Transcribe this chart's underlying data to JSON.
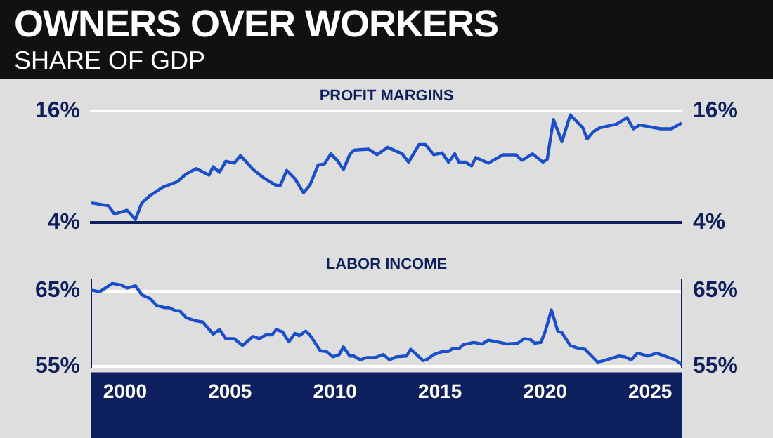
{
  "chart_data": [
    {
      "type": "other",
      "title": "OWNERS OVER WORKERS",
      "subtitle": "SHARE OF GDP"
    },
    {
      "type": "line",
      "title": "PROFIT MARGINS",
      "xlim": [
        1998.4,
        2026.5
      ],
      "xticks": [
        2000,
        2005,
        2010,
        2015,
        2020,
        2025
      ],
      "ylim": [
        4,
        16
      ],
      "yticks": [
        {
          "value": 4,
          "label": "4%"
        },
        {
          "value": 16,
          "label": "16%"
        }
      ],
      "y2lim": [
        4,
        16
      ],
      "y2ticks": [
        {
          "value": 4,
          "label": "4%"
        },
        {
          "value": 16,
          "label": "16%"
        }
      ],
      "tick_labels": "y",
      "legend": false,
      "series": [
        {
          "color": "#1a4fc9",
          "x": [
            1998.4,
            1999.2,
            1999.5,
            2000.1,
            2000.5,
            2000.8,
            2001.2,
            2001.8,
            2002.5,
            2002.9,
            2003.4,
            2004.0,
            2004.2,
            2004.5,
            2004.8,
            2005.2,
            2005.5,
            2006.1,
            2006.6,
            2007.2,
            2007.4,
            2007.7,
            2008.1,
            2008.5,
            2008.8,
            2009.2,
            2009.5,
            2009.8,
            2010.1,
            2010.4,
            2010.7,
            2010.9,
            2011.6,
            2012.0,
            2012.5,
            2013.2,
            2013.5,
            2014.0,
            2014.3,
            2014.7,
            2015.1,
            2015.4,
            2015.7,
            2015.9,
            2016.2,
            2016.5,
            2016.7,
            2017.3,
            2018.0,
            2018.6,
            2018.9,
            2019.4,
            2019.9,
            2020.1,
            2020.4,
            2020.8,
            2021.2,
            2021.8,
            2022.0,
            2022.3,
            2022.6,
            2023.4,
            2023.9,
            2024.2,
            2024.5,
            2025.5,
            2026.0,
            2026.5
          ],
          "values": [
            6.1,
            5.8,
            4.9,
            5.3,
            4.3,
            6.1,
            6.9,
            7.8,
            8.4,
            9.2,
            9.8,
            9.1,
            10.0,
            9.4,
            10.6,
            10.4,
            11.2,
            9.7,
            8.8,
            8.0,
            8.0,
            9.6,
            8.7,
            7.2,
            8.0,
            10.2,
            10.3,
            11.4,
            10.7,
            9.7,
            11.3,
            11.8,
            11.9,
            11.3,
            12.1,
            11.4,
            10.5,
            12.4,
            12.4,
            11.3,
            11.5,
            10.5,
            11.4,
            10.5,
            10.5,
            10.1,
            11.0,
            10.4,
            11.3,
            11.3,
            10.7,
            11.4,
            10.5,
            10.8,
            15.1,
            12.7,
            15.6,
            14.2,
            13.0,
            13.8,
            14.2,
            14.6,
            15.3,
            14.1,
            14.5,
            14.1,
            14.1,
            14.7
          ]
        }
      ]
    },
    {
      "type": "line",
      "title": "LABOR INCOME",
      "xlim": [
        1998.4,
        2026.5
      ],
      "xticks": [
        2000,
        2005,
        2010,
        2015,
        2020,
        2025
      ],
      "ylim": [
        55,
        66.5
      ],
      "yticks": [
        {
          "value": 55,
          "label": "55%"
        },
        {
          "value": 65,
          "label": "65%"
        }
      ],
      "y2lim": [
        55,
        66.5
      ],
      "y2ticks": [
        {
          "value": 55,
          "label": "55%"
        },
        {
          "value": 65,
          "label": "65%"
        }
      ],
      "grid": "y",
      "legend": false,
      "series": [
        {
          "color": "#1a4fc9",
          "x": [
            1998.4,
            1998.8,
            1999.4,
            1999.8,
            2000.1,
            2000.5,
            2000.8,
            2001.2,
            2001.5,
            2001.9,
            2002.1,
            2002.4,
            2002.6,
            2002.9,
            2003.3,
            2003.7,
            2004.2,
            2004.5,
            2004.8,
            2005.2,
            2005.6,
            2006.1,
            2006.4,
            2006.7,
            2007.0,
            2007.2,
            2007.5,
            2007.8,
            2008.1,
            2008.3,
            2008.6,
            2008.8,
            2009.3,
            2009.6,
            2009.9,
            2010.2,
            2010.4,
            2010.7,
            2010.9,
            2011.2,
            2011.5,
            2011.9,
            2012.3,
            2012.6,
            2012.9,
            2013.4,
            2013.6,
            2014.2,
            2014.4,
            2014.7,
            2015.1,
            2015.4,
            2015.6,
            2015.9,
            2016.1,
            2016.6,
            2017.0,
            2017.3,
            2017.7,
            2018.2,
            2018.7,
            2019.0,
            2019.3,
            2019.5,
            2019.8,
            2020.0,
            2020.3,
            2020.6,
            2020.8,
            2021.2,
            2021.5,
            2021.9,
            2022.5,
            2022.8,
            2023.5,
            2023.8,
            2024.1,
            2024.4,
            2024.9,
            2025.3,
            2025.7,
            2026.2,
            2026.5
          ],
          "values": [
            65.1,
            64.9,
            66.0,
            65.8,
            65.4,
            65.7,
            64.5,
            64.0,
            63.1,
            62.8,
            62.8,
            62.4,
            62.4,
            61.5,
            61.1,
            60.9,
            59.3,
            59.9,
            58.7,
            58.7,
            57.8,
            59.0,
            58.7,
            59.2,
            59.2,
            59.9,
            59.6,
            58.3,
            59.4,
            59.1,
            59.7,
            59.2,
            57.1,
            57.0,
            56.3,
            56.6,
            57.6,
            56.4,
            56.4,
            55.9,
            56.2,
            56.2,
            56.6,
            55.9,
            56.3,
            56.4,
            57.3,
            55.8,
            56.0,
            56.6,
            57.0,
            57.0,
            57.4,
            57.4,
            57.9,
            58.2,
            58.0,
            58.5,
            58.3,
            58.0,
            58.1,
            58.7,
            58.6,
            58.1,
            58.2,
            59.6,
            62.5,
            59.7,
            59.5,
            57.8,
            57.5,
            57.3,
            55.6,
            55.8,
            56.4,
            56.3,
            55.9,
            56.8,
            56.4,
            56.8,
            56.4,
            55.9,
            55.3
          ]
        }
      ]
    }
  ]
}
